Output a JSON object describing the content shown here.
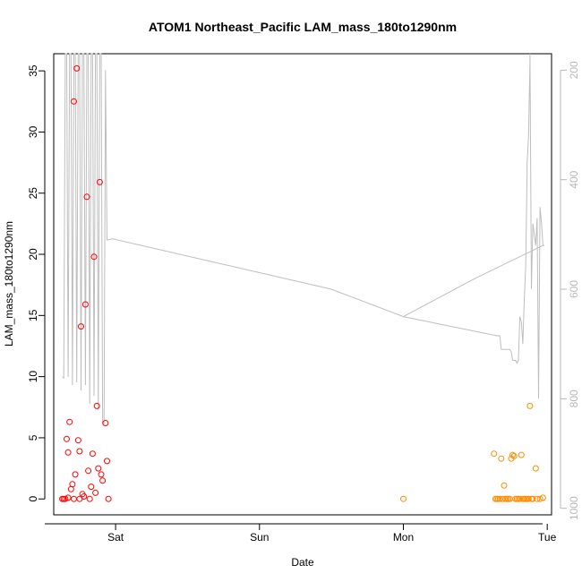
{
  "chart_data": {
    "type": "scatter",
    "title": "ATOM1 Northeast_Pacific LAM_mass_180to1290nm",
    "xlabel": "Date",
    "ylabel": "LAM_mass_180to1290nm",
    "x_unit": "days",
    "x_tick_labels": [
      {
        "x": 0,
        "label": "Sat"
      },
      {
        "x": 1,
        "label": "Sun"
      },
      {
        "x": 2,
        "label": "Mon"
      },
      {
        "x": 3,
        "label": "Tue"
      }
    ],
    "xlim": [
      -0.43,
      3.03
    ],
    "ylim": [
      -1.3,
      36.4
    ],
    "y_ticks": [
      0,
      5,
      10,
      15,
      20,
      25,
      30,
      35
    ],
    "y2_label": "",
    "y2_ticks": [
      200,
      400,
      600,
      800,
      1000
    ],
    "y2lim": [
      1012,
      170
    ],
    "grid": false,
    "colors": {
      "series_red": "#ff0000",
      "series_orange": "#ff8c00",
      "altitude_line": "#bebebe",
      "right_axis": "#b8b8b8"
    },
    "series": [
      {
        "marker": "circle-open",
        "color": "#ff0000",
        "points": [
          [
            -0.37,
            0.0
          ],
          [
            -0.36,
            0.0
          ],
          [
            -0.35,
            0.0
          ],
          [
            -0.34,
            4.9
          ],
          [
            -0.33,
            3.8
          ],
          [
            -0.33,
            0.1
          ],
          [
            -0.32,
            6.3
          ],
          [
            -0.31,
            0.8
          ],
          [
            -0.3,
            1.2
          ],
          [
            -0.29,
            0.0
          ],
          [
            -0.29,
            32.5
          ],
          [
            -0.28,
            2.0
          ],
          [
            -0.27,
            35.2
          ],
          [
            -0.26,
            4.8
          ],
          [
            -0.25,
            0.0
          ],
          [
            -0.25,
            3.9
          ],
          [
            -0.24,
            14.1
          ],
          [
            -0.23,
            0.4
          ],
          [
            -0.22,
            0.2
          ],
          [
            -0.21,
            15.9
          ],
          [
            -0.2,
            24.7
          ],
          [
            -0.19,
            2.3
          ],
          [
            -0.18,
            0.0
          ],
          [
            -0.17,
            1.0
          ],
          [
            -0.16,
            3.7
          ],
          [
            -0.15,
            19.8
          ],
          [
            -0.14,
            0.5
          ],
          [
            -0.13,
            7.6
          ],
          [
            -0.12,
            2.5
          ],
          [
            -0.11,
            25.9
          ],
          [
            -0.1,
            2.0
          ],
          [
            -0.09,
            1.5
          ],
          [
            -0.07,
            6.2
          ],
          [
            -0.06,
            3.1
          ],
          [
            -0.05,
            0.0
          ]
        ]
      },
      {
        "marker": "circle-open",
        "color": "#ff8c00",
        "points": [
          [
            2.0,
            0.0
          ],
          [
            2.63,
            3.7
          ],
          [
            2.64,
            0.0
          ],
          [
            2.65,
            0.0
          ],
          [
            2.66,
            0.0
          ],
          [
            2.67,
            0.0
          ],
          [
            2.68,
            3.3
          ],
          [
            2.69,
            0.0
          ],
          [
            2.7,
            1.1
          ],
          [
            2.71,
            0.0
          ],
          [
            2.72,
            0.0
          ],
          [
            2.73,
            0.0
          ],
          [
            2.74,
            0.0
          ],
          [
            2.75,
            3.3
          ],
          [
            2.76,
            3.6
          ],
          [
            2.77,
            3.5
          ],
          [
            2.78,
            0.0
          ],
          [
            2.79,
            0.0
          ],
          [
            2.8,
            0.0
          ],
          [
            2.81,
            0.0
          ],
          [
            2.82,
            3.6
          ],
          [
            2.83,
            0.0
          ],
          [
            2.84,
            0.0
          ],
          [
            2.85,
            0.0
          ],
          [
            2.86,
            0.0
          ],
          [
            2.87,
            0.0
          ],
          [
            2.88,
            7.6
          ],
          [
            2.89,
            0.0
          ],
          [
            2.9,
            0.0
          ],
          [
            2.92,
            2.5
          ],
          [
            2.93,
            0.0
          ],
          [
            2.95,
            0.0
          ],
          [
            2.97,
            0.1
          ]
        ]
      }
    ],
    "altitude_line": {
      "color": "#bebebe",
      "axis": "right",
      "points": [
        [
          -0.37,
          760
        ],
        [
          -0.36,
          762
        ],
        [
          -0.35,
          170
        ],
        [
          -0.34,
          170
        ],
        [
          -0.33,
          760
        ],
        [
          -0.32,
          170
        ],
        [
          -0.31,
          170
        ],
        [
          -0.3,
          775
        ],
        [
          -0.29,
          170
        ],
        [
          -0.28,
          170
        ],
        [
          -0.27,
          770
        ],
        [
          -0.26,
          170
        ],
        [
          -0.25,
          170
        ],
        [
          -0.24,
          785
        ],
        [
          -0.23,
          170
        ],
        [
          -0.22,
          170
        ],
        [
          -0.21,
          775
        ],
        [
          -0.2,
          170
        ],
        [
          -0.19,
          170
        ],
        [
          -0.18,
          810
        ],
        [
          -0.17,
          170
        ],
        [
          -0.16,
          170
        ],
        [
          -0.15,
          795
        ],
        [
          -0.14,
          170
        ],
        [
          -0.13,
          170
        ],
        [
          -0.12,
          820
        ],
        [
          -0.11,
          170
        ],
        [
          -0.1,
          170
        ],
        [
          -0.09,
          845
        ],
        [
          -0.08,
          845
        ],
        [
          -0.07,
          200
        ],
        [
          -0.06,
          510
        ],
        [
          -0.02,
          508
        ],
        [
          1.5,
          600
        ],
        [
          2.0,
          650
        ],
        [
          2.65,
          685
        ],
        [
          2.67,
          685
        ],
        [
          2.68,
          710
        ],
        [
          2.74,
          710
        ],
        [
          2.75,
          715
        ],
        [
          2.76,
          730
        ],
        [
          2.78,
          730
        ],
        [
          2.79,
          735
        ],
        [
          2.8,
          730
        ],
        [
          2.81,
          650
        ],
        [
          2.82,
          660
        ],
        [
          2.83,
          700
        ],
        [
          2.84,
          620
        ],
        [
          2.85,
          560
        ],
        [
          2.86,
          385
        ],
        [
          2.86,
          370
        ],
        [
          2.87,
          320
        ],
        [
          2.88,
          185
        ],
        [
          2.88,
          170
        ],
        [
          2.89,
          600
        ],
        [
          2.9,
          480
        ],
        [
          2.91,
          500
        ],
        [
          2.92,
          520
        ],
        [
          2.93,
          470
        ],
        [
          2.94,
          800
        ],
        [
          2.95,
          450
        ],
        [
          2.96,
          480
        ],
        [
          2.97,
          520
        ],
        [
          2.98,
          520
        ],
        [
          2.97,
          520
        ],
        [
          2.5,
          580
        ],
        [
          2.0,
          650
        ]
      ]
    }
  }
}
